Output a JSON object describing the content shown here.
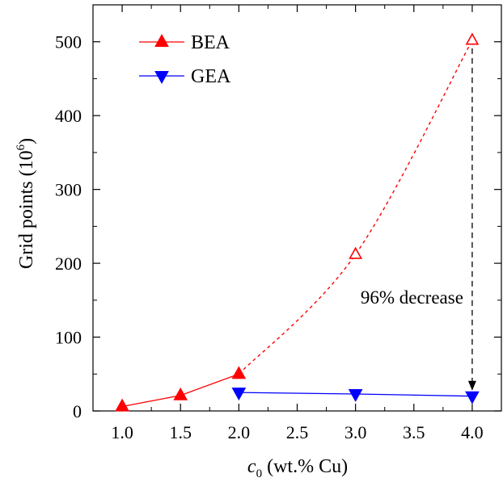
{
  "chart_data": {
    "type": "line",
    "xlabel": {
      "italic": "c",
      "subscript": "0",
      "rest": " (wt.% Cu)"
    },
    "ylabel": {
      "main": "Grid points (10",
      "superscript": "6",
      "close": ")"
    },
    "xlim": [
      0.75,
      4.25
    ],
    "ylim": [
      0,
      550
    ],
    "xticks": [
      1.0,
      1.5,
      2.0,
      2.5,
      3.0,
      3.5,
      4.0
    ],
    "xtick_labels": [
      "1.0",
      "1.5",
      "2.0",
      "2.5",
      "3.0",
      "3.5",
      "4.0"
    ],
    "yticks": [
      0,
      100,
      200,
      300,
      400,
      500
    ],
    "ytick_labels": [
      "0",
      "100",
      "200",
      "300",
      "400",
      "500"
    ],
    "grid": false,
    "legend_position": "top-left",
    "series": [
      {
        "name": "BEA",
        "color": "#ff0000",
        "marker": "triangle-up",
        "solid": {
          "x": [
            1.0,
            1.5,
            2.0
          ],
          "y": [
            6,
            21,
            50
          ]
        },
        "dashed_extrapolation": {
          "x": [
            2.0,
            3.0,
            4.0
          ],
          "y": [
            50,
            212,
            502
          ],
          "marker_fill": "open"
        }
      },
      {
        "name": "GEA",
        "color": "#0000ff",
        "marker": "triangle-down",
        "solid": {
          "x": [
            2.0,
            3.0,
            4.0
          ],
          "y": [
            25,
            23,
            20
          ]
        }
      }
    ],
    "annotations": [
      {
        "text": "96% decrease",
        "arrow_x": 4.0,
        "arrow_from_y": 502,
        "arrow_to_y": 20
      }
    ]
  }
}
